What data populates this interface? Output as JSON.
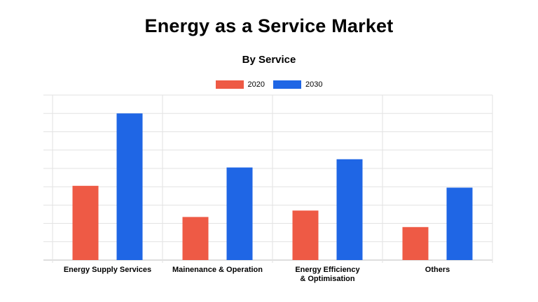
{
  "chart_data": {
    "type": "bar",
    "title": "Energy as a Service Market",
    "subtitle": "By Service",
    "categories": [
      [
        "Energy Supply Services"
      ],
      [
        "Mainenance & Operation"
      ],
      [
        "Energy Efficiency",
        "& Optimisation"
      ],
      [
        "Others"
      ]
    ],
    "series": [
      {
        "name": "2020",
        "color": "#EE5A45",
        "values": [
          4.05,
          2.35,
          2.7,
          1.8
        ]
      },
      {
        "name": "2030",
        "color": "#1F66E5",
        "values": [
          8.0,
          5.05,
          5.5,
          3.95
        ]
      }
    ],
    "ylim": [
      0,
      9
    ],
    "grid": true,
    "legend_position": "top-center",
    "xlabel": "",
    "ylabel": ""
  }
}
